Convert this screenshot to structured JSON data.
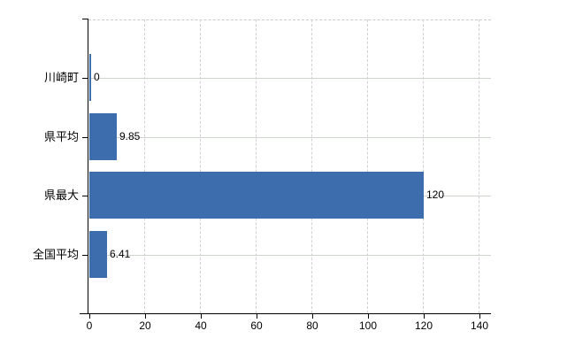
{
  "chart_data": {
    "type": "bar",
    "orientation": "horizontal",
    "title": "",
    "xlabel": "",
    "ylabel": "",
    "categories": [
      "川崎町",
      "県平均",
      "県最大",
      "全国平均"
    ],
    "values": [
      0,
      9.85,
      120,
      6.41
    ],
    "value_labels": [
      "0",
      "9.85",
      "120",
      "6.41"
    ],
    "x_ticks": [
      0,
      20,
      40,
      60,
      80,
      100,
      120,
      140
    ],
    "x_tick_labels": [
      "0",
      "20",
      "40",
      "60",
      "80",
      "100",
      "120",
      "140"
    ],
    "xlim": [
      0,
      144
    ],
    "grid": "on",
    "legend": "none"
  },
  "colors": {
    "bar": "#3e6dad",
    "h_gridline": "#ccd4cb",
    "v_gridline": "#d2d0d2",
    "axis": "#000000",
    "background": "#ffffff",
    "text": "#000000"
  }
}
